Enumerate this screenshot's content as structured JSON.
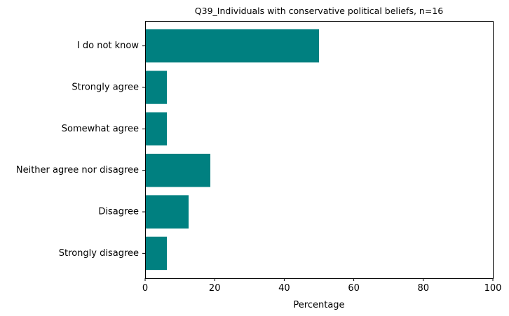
{
  "chart_data": {
    "type": "bar",
    "orientation": "horizontal",
    "title": "Q39_Individuals with conservative political beliefs, n=16",
    "xlabel": "Percentage",
    "ylabel": "",
    "categories": [
      "Strongly disagree",
      "Disagree",
      "Neither agree nor disagree",
      "Somewhat agree",
      "Strongly agree",
      "I do not know"
    ],
    "values": [
      6.25,
      12.5,
      18.75,
      6.25,
      6.25,
      50.0
    ],
    "xlim": [
      0,
      100
    ],
    "xticks": [
      0,
      20,
      40,
      60,
      80,
      100
    ],
    "bar_color": "#008080",
    "grid": false,
    "legend": "none"
  }
}
